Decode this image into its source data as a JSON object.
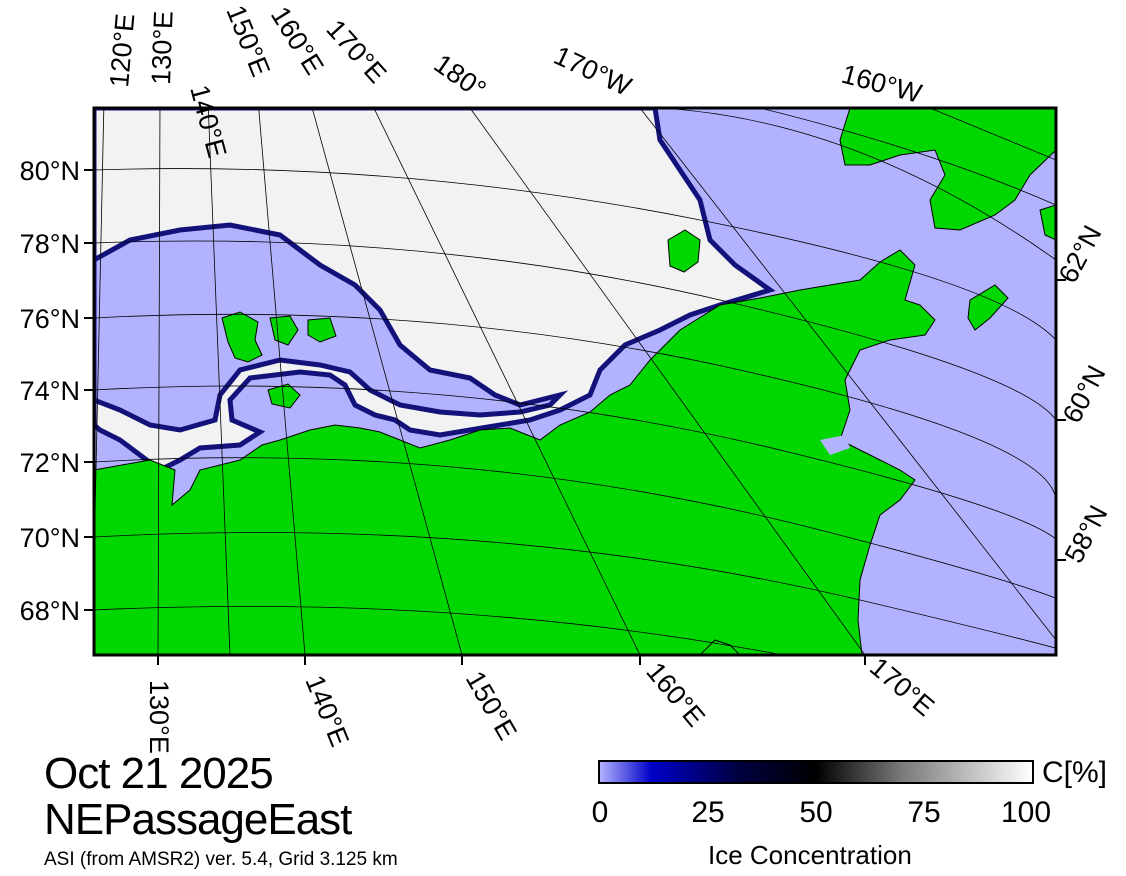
{
  "map": {
    "title_date": "Oct 21 2025",
    "region": "NEPassageEast",
    "source": "ASI (from AMSR2) ver. 5.4,  Grid 3.125 km",
    "colors": {
      "ocean": "#b2b2ff",
      "land": "#00d700",
      "ice": "#f2f2f2",
      "ice_edge": "#1a1aa0",
      "grid": "#000000"
    },
    "top_longitude_labels": [
      "120°E",
      "130°E",
      "140°E",
      "150°E",
      "160°E",
      "170°E",
      "180°",
      "170°W",
      "160°W"
    ],
    "bottom_longitude_labels": [
      "130°E",
      "140°E",
      "150°E",
      "160°E",
      "170°E"
    ],
    "left_latitude_labels": [
      "80°N",
      "78°N",
      "76°N",
      "74°N",
      "72°N",
      "70°N",
      "68°N"
    ],
    "right_latitude_labels": [
      "62°N",
      "60°N",
      "58°N"
    ]
  },
  "colorbar": {
    "title": "Ice Concentration",
    "unit": "C[%]",
    "ticks": [
      "0",
      "25",
      "50",
      "75",
      "100"
    ],
    "range": [
      0,
      100
    ]
  }
}
